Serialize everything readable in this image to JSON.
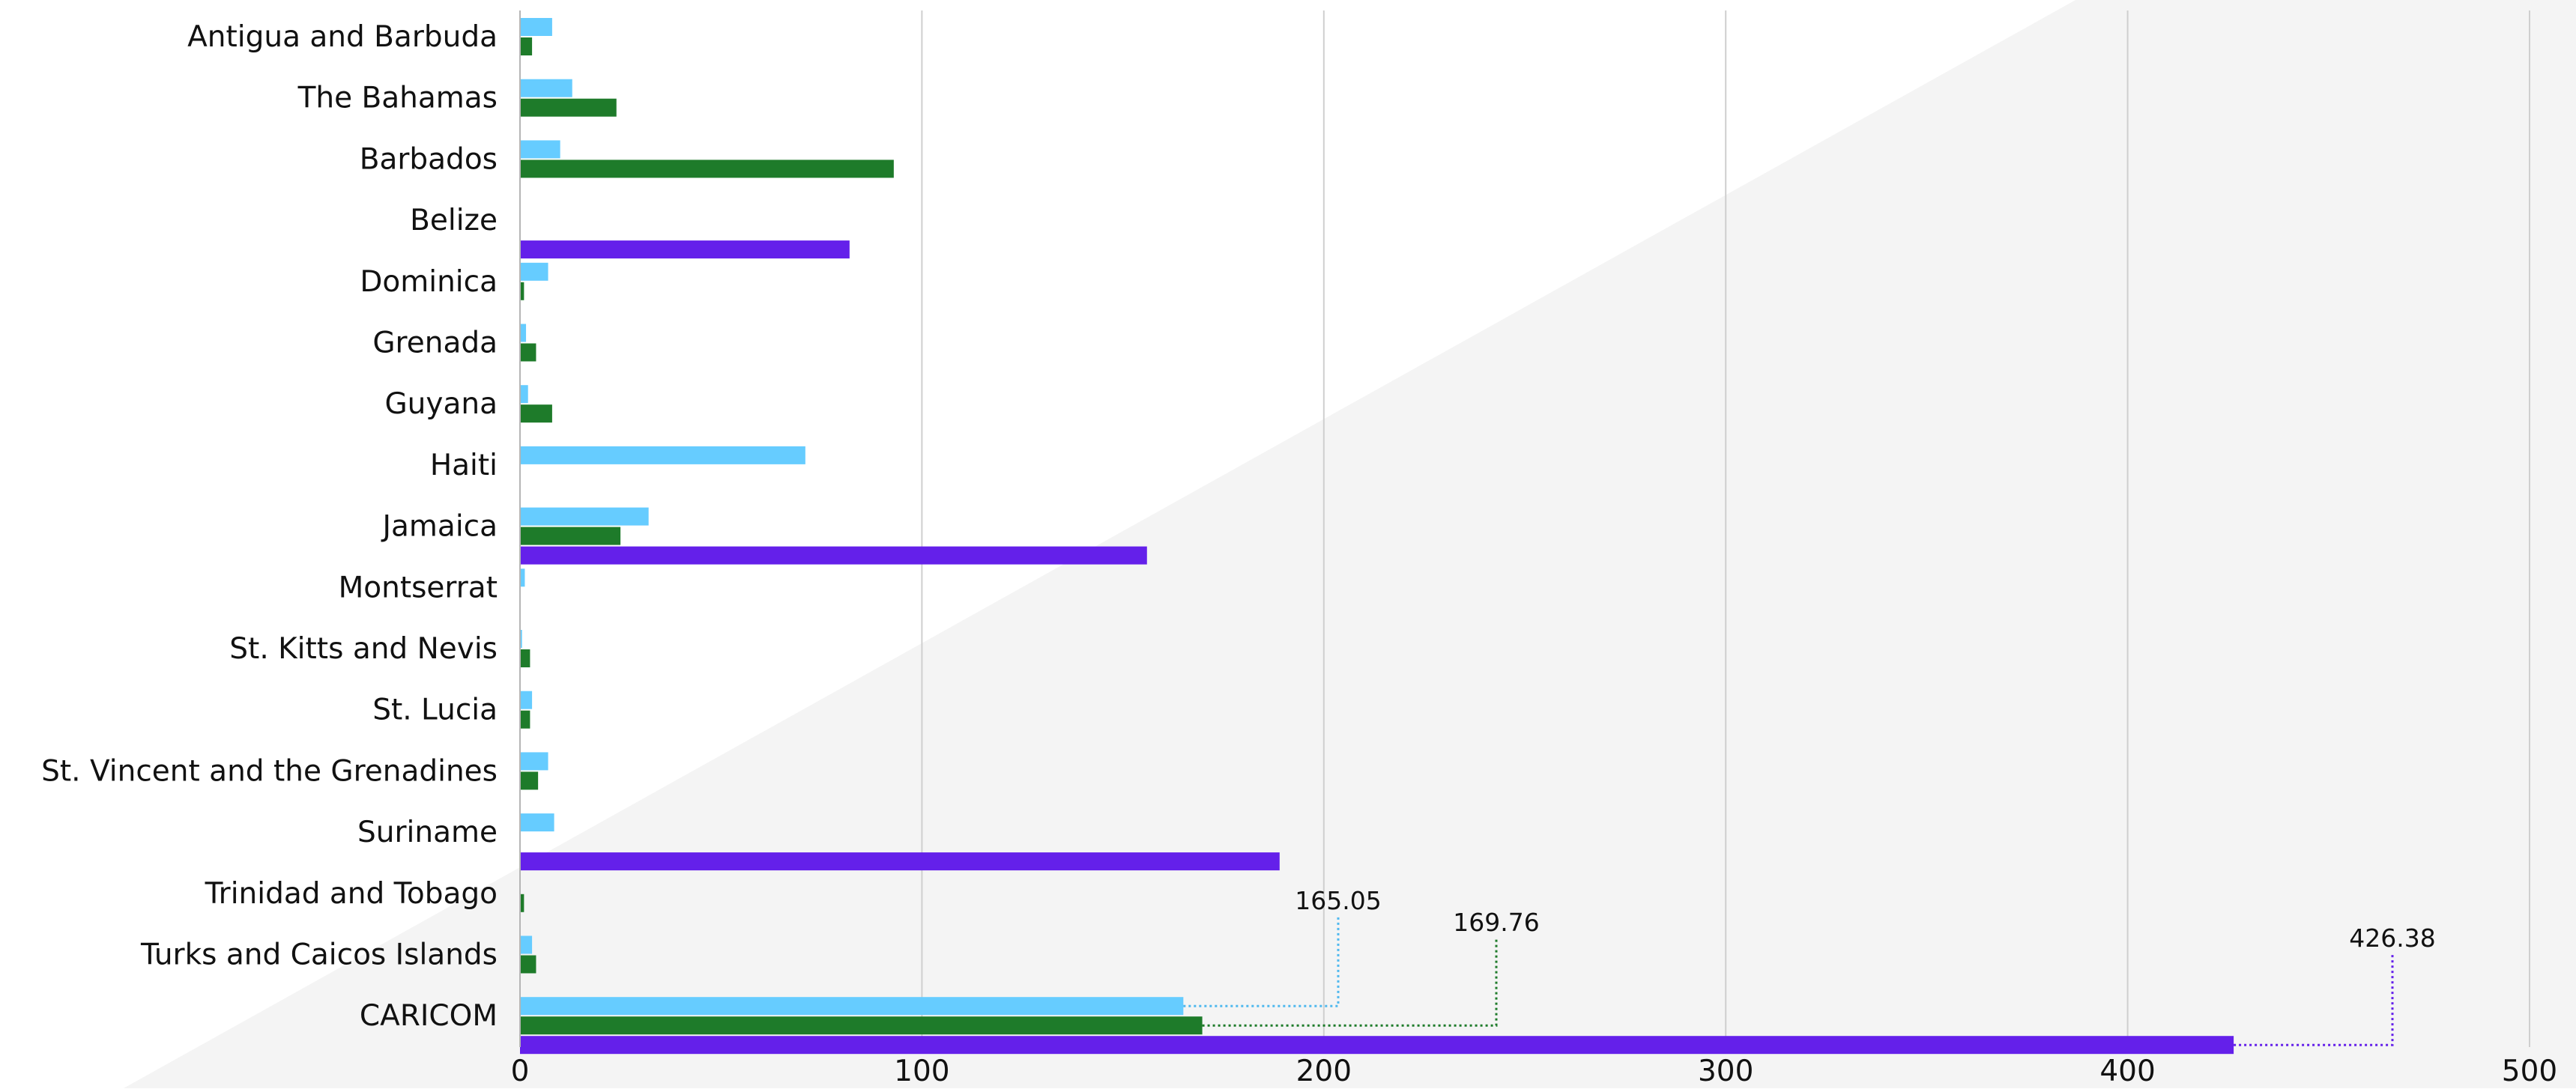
{
  "chart_data": {
    "type": "bar",
    "orientation": "horizontal",
    "categories": [
      "Antigua and Barbuda",
      "The Bahamas",
      "Barbados",
      "Belize",
      "Dominica",
      "Grenada",
      "Guyana",
      "Haiti",
      "Jamaica",
      "Montserrat",
      "St. Kitts and Nevis",
      "St. Lucia",
      "St. Vincent and the Grenadines",
      "Suriname",
      "Trinidad and Tobago",
      "Turks and Caicos Islands",
      "CARICOM"
    ],
    "series": [
      {
        "color": "#66ccff",
        "values": [
          8,
          13,
          10,
          0,
          7,
          1.5,
          2,
          71,
          32,
          1.2,
          0.5,
          3,
          7,
          8.5,
          0,
          3,
          165.05
        ]
      },
      {
        "color": "#1e7b2a",
        "values": [
          3,
          24,
          93,
          0,
          1,
          4,
          8,
          0,
          25,
          0,
          2.5,
          2.5,
          4.5,
          0,
          1,
          4,
          169.76
        ]
      },
      {
        "color": "#6420ea",
        "values": [
          0,
          0,
          0,
          82,
          0,
          0,
          0,
          0,
          156,
          0,
          0,
          0,
          0,
          189,
          0,
          0,
          426.38
        ]
      }
    ],
    "data_labels": [
      {
        "category": "CARICOM",
        "series_index": 0,
        "text": "165.05"
      },
      {
        "category": "CARICOM",
        "series_index": 1,
        "text": "169.76"
      },
      {
        "category": "CARICOM",
        "series_index": 2,
        "text": "426.38"
      }
    ],
    "x_ticks": [
      "0",
      "100",
      "200",
      "300",
      "400",
      "500"
    ],
    "xlim": [
      0,
      500
    ],
    "grid": "vertical",
    "legend": "none",
    "background": {
      "base": "#ffffff",
      "shade": "#f4f4f4"
    }
  }
}
